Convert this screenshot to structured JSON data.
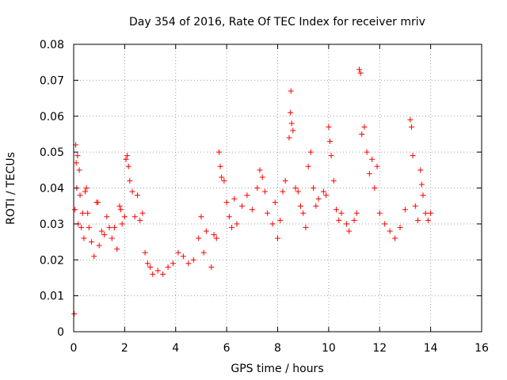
{
  "chart_data": {
    "type": "scatter",
    "title": "Day 354 of 2016, Rate Of TEC Index for receiver mriv",
    "xlabel": "GPS time / hours",
    "ylabel": "ROTI / TECUs",
    "xlim": [
      0,
      16
    ],
    "ylim": [
      0,
      0.08
    ],
    "x_ticks": [
      0,
      2,
      4,
      6,
      8,
      10,
      12,
      14,
      16
    ],
    "x_tick_labels": [
      "0",
      "2",
      "4",
      "6",
      "8",
      "10",
      "12",
      "14",
      "16"
    ],
    "y_ticks": [
      0,
      0.01,
      0.02,
      0.03,
      0.04,
      0.05,
      0.06,
      0.07,
      0.08
    ],
    "y_tick_labels": [
      "0",
      "0.01",
      "0.02",
      "0.03",
      "0.04",
      "0.05",
      "0.06",
      "0.07",
      "0.08"
    ],
    "grid": true,
    "marker": "+",
    "color": "#ff0000",
    "series": [
      {
        "name": "ROTI",
        "points": [
          [
            0.02,
            0.005
          ],
          [
            0.05,
            0.034
          ],
          [
            0.08,
            0.052
          ],
          [
            0.1,
            0.047
          ],
          [
            0.12,
            0.04
          ],
          [
            0.15,
            0.049
          ],
          [
            0.18,
            0.03
          ],
          [
            0.22,
            0.045
          ],
          [
            0.25,
            0.038
          ],
          [
            0.3,
            0.029
          ],
          [
            0.35,
            0.033
          ],
          [
            0.4,
            0.026
          ],
          [
            0.45,
            0.039
          ],
          [
            0.5,
            0.04
          ],
          [
            0.55,
            0.033
          ],
          [
            0.6,
            0.029
          ],
          [
            0.7,
            0.025
          ],
          [
            0.8,
            0.021
          ],
          [
            0.9,
            0.036
          ],
          [
            0.95,
            0.036
          ],
          [
            1.0,
            0.024
          ],
          [
            1.1,
            0.028
          ],
          [
            1.2,
            0.027
          ],
          [
            1.3,
            0.032
          ],
          [
            1.4,
            0.029
          ],
          [
            1.5,
            0.026
          ],
          [
            1.6,
            0.029
          ],
          [
            1.7,
            0.023
          ],
          [
            1.8,
            0.035
          ],
          [
            1.85,
            0.034
          ],
          [
            1.9,
            0.03
          ],
          [
            2.0,
            0.032
          ],
          [
            2.05,
            0.048
          ],
          [
            2.1,
            0.049
          ],
          [
            2.15,
            0.046
          ],
          [
            2.2,
            0.042
          ],
          [
            2.3,
            0.039
          ],
          [
            2.4,
            0.032
          ],
          [
            2.5,
            0.038
          ],
          [
            2.6,
            0.031
          ],
          [
            2.7,
            0.033
          ],
          [
            2.8,
            0.022
          ],
          [
            2.9,
            0.019
          ],
          [
            3.0,
            0.018
          ],
          [
            3.1,
            0.016
          ],
          [
            3.3,
            0.017
          ],
          [
            3.5,
            0.016
          ],
          [
            3.7,
            0.018
          ],
          [
            3.9,
            0.019
          ],
          [
            4.1,
            0.022
          ],
          [
            4.3,
            0.021
          ],
          [
            4.5,
            0.019
          ],
          [
            4.7,
            0.02
          ],
          [
            4.9,
            0.026
          ],
          [
            5.0,
            0.032
          ],
          [
            5.1,
            0.022
          ],
          [
            5.2,
            0.028
          ],
          [
            5.4,
            0.018
          ],
          [
            5.5,
            0.027
          ],
          [
            5.6,
            0.026
          ],
          [
            5.7,
            0.05
          ],
          [
            5.75,
            0.046
          ],
          [
            5.8,
            0.043
          ],
          [
            5.9,
            0.042
          ],
          [
            6.0,
            0.036
          ],
          [
            6.1,
            0.032
          ],
          [
            6.2,
            0.029
          ],
          [
            6.3,
            0.037
          ],
          [
            6.4,
            0.03
          ],
          [
            6.6,
            0.035
          ],
          [
            6.8,
            0.038
          ],
          [
            7.0,
            0.034
          ],
          [
            7.2,
            0.04
          ],
          [
            7.3,
            0.045
          ],
          [
            7.4,
            0.043
          ],
          [
            7.5,
            0.039
          ],
          [
            7.6,
            0.033
          ],
          [
            7.8,
            0.03
          ],
          [
            7.9,
            0.036
          ],
          [
            8.0,
            0.026
          ],
          [
            8.1,
            0.031
          ],
          [
            8.2,
            0.039
          ],
          [
            8.3,
            0.042
          ],
          [
            8.45,
            0.054
          ],
          [
            8.5,
            0.061
          ],
          [
            8.52,
            0.067
          ],
          [
            8.55,
            0.058
          ],
          [
            8.6,
            0.056
          ],
          [
            8.7,
            0.04
          ],
          [
            8.8,
            0.039
          ],
          [
            8.9,
            0.035
          ],
          [
            9.0,
            0.033
          ],
          [
            9.1,
            0.029
          ],
          [
            9.2,
            0.046
          ],
          [
            9.3,
            0.05
          ],
          [
            9.4,
            0.04
          ],
          [
            9.5,
            0.035
          ],
          [
            9.6,
            0.037
          ],
          [
            9.8,
            0.039
          ],
          [
            9.9,
            0.038
          ],
          [
            10.0,
            0.057
          ],
          [
            10.05,
            0.053
          ],
          [
            10.1,
            0.049
          ],
          [
            10.2,
            0.042
          ],
          [
            10.3,
            0.034
          ],
          [
            10.4,
            0.031
          ],
          [
            10.5,
            0.033
          ],
          [
            10.7,
            0.03
          ],
          [
            10.8,
            0.028
          ],
          [
            11.0,
            0.031
          ],
          [
            11.1,
            0.033
          ],
          [
            11.2,
            0.073
          ],
          [
            11.25,
            0.072
          ],
          [
            11.3,
            0.055
          ],
          [
            11.4,
            0.057
          ],
          [
            11.5,
            0.05
          ],
          [
            11.6,
            0.044
          ],
          [
            11.7,
            0.048
          ],
          [
            11.8,
            0.04
          ],
          [
            11.9,
            0.046
          ],
          [
            12.0,
            0.033
          ],
          [
            12.2,
            0.03
          ],
          [
            12.4,
            0.028
          ],
          [
            12.6,
            0.026
          ],
          [
            12.8,
            0.029
          ],
          [
            13.0,
            0.034
          ],
          [
            13.2,
            0.059
          ],
          [
            13.25,
            0.057
          ],
          [
            13.3,
            0.049
          ],
          [
            13.4,
            0.035
          ],
          [
            13.5,
            0.031
          ],
          [
            13.6,
            0.045
          ],
          [
            13.65,
            0.041
          ],
          [
            13.7,
            0.038
          ],
          [
            13.8,
            0.033
          ],
          [
            13.9,
            0.031
          ],
          [
            14.0,
            0.033
          ]
        ]
      }
    ]
  }
}
